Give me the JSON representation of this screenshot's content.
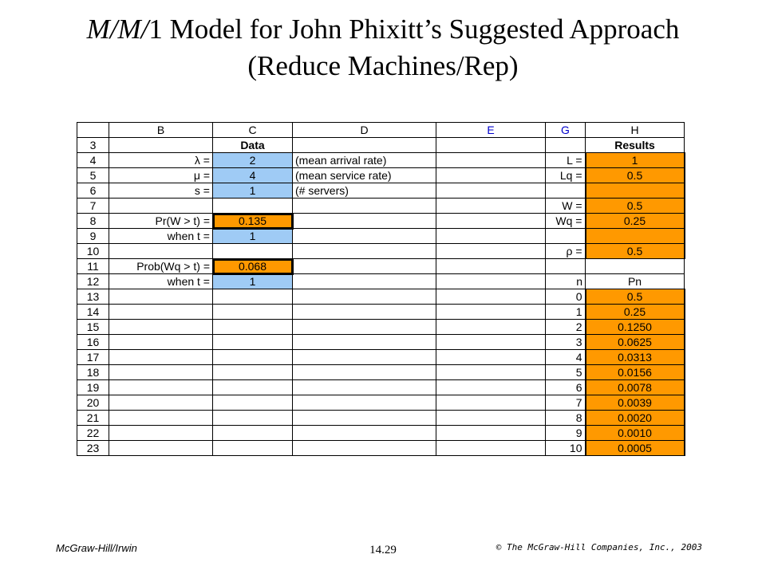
{
  "title": {
    "line1_italic": "M/M/",
    "line1_rest": "1 Model for John Phixitt’s Suggested Approach",
    "line2": "(Reduce Machines/Rep)"
  },
  "columns": [
    "",
    "B",
    "C",
    "D",
    "E",
    "G",
    "H"
  ],
  "rows": [
    {
      "n": "3",
      "b": "",
      "c": "Data",
      "d": "",
      "g": "",
      "h": "Results"
    },
    {
      "n": "4",
      "b": "λ =",
      "c": "2",
      "d": "(mean arrival rate)",
      "g": "L =",
      "h": "1"
    },
    {
      "n": "5",
      "b": "μ =",
      "c": "4",
      "d": "(mean service rate)",
      "g": "Lq =",
      "h": "0.5"
    },
    {
      "n": "6",
      "b": "s =",
      "c": "1",
      "d": "(# servers)",
      "g": "",
      "h": ""
    },
    {
      "n": "7",
      "b": "",
      "c": "",
      "d": "",
      "g": "W =",
      "h": "0.5"
    },
    {
      "n": "8",
      "b": "Pr(W > t) =",
      "c": "0.135",
      "d": "",
      "g": "Wq =",
      "h": "0.25"
    },
    {
      "n": "9",
      "b": "when t =",
      "c": "1",
      "d": "",
      "g": "",
      "h": ""
    },
    {
      "n": "10",
      "b": "",
      "c": "",
      "d": "",
      "g": "ρ =",
      "h": "0.5"
    },
    {
      "n": "11",
      "b": "Prob(Wq > t) =",
      "c": "0.068",
      "d": "",
      "g": "",
      "h": ""
    },
    {
      "n": "12",
      "b": "when t =",
      "c": "1",
      "d": "",
      "g": "n",
      "h": "Pn"
    },
    {
      "n": "13",
      "g": "0",
      "h": "0.5"
    },
    {
      "n": "14",
      "g": "1",
      "h": "0.25"
    },
    {
      "n": "15",
      "g": "2",
      "h": "0.1250"
    },
    {
      "n": "16",
      "g": "3",
      "h": "0.0625"
    },
    {
      "n": "17",
      "g": "4",
      "h": "0.0313"
    },
    {
      "n": "18",
      "g": "5",
      "h": "0.0156"
    },
    {
      "n": "19",
      "g": "6",
      "h": "0.0078"
    },
    {
      "n": "20",
      "g": "7",
      "h": "0.0039"
    },
    {
      "n": "21",
      "g": "8",
      "h": "0.0020"
    },
    {
      "n": "22",
      "g": "9",
      "h": "0.0010"
    },
    {
      "n": "23",
      "g": "10",
      "h": "0.0005"
    }
  ],
  "footer": {
    "left": "McGraw-Hill/Irwin",
    "center": "14.29",
    "right": "© The McGraw-Hill Companies, Inc., 2003"
  },
  "colors": {
    "input": "#9fcbf5",
    "output": "#ff9900"
  }
}
